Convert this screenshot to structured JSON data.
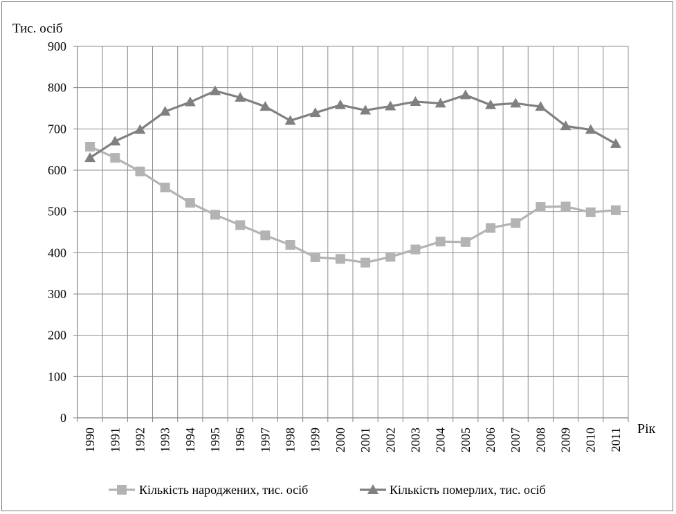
{
  "chart_data": {
    "type": "line",
    "title": "",
    "ylabel": "Тис. осіб",
    "xlabel": "Рік",
    "ylim": [
      0,
      900
    ],
    "yticks": [
      0,
      100,
      200,
      300,
      400,
      500,
      600,
      700,
      800,
      900
    ],
    "grid": true,
    "legend_position": "bottom",
    "categories": [
      "1990",
      "1991",
      "1992",
      "1993",
      "1994",
      "1995",
      "1996",
      "1997",
      "1998",
      "1999",
      "2000",
      "2001",
      "2002",
      "2003",
      "2004",
      "2005",
      "2006",
      "2007",
      "2008",
      "2009",
      "2010",
      "2011"
    ],
    "series": [
      {
        "name": "Кількість народжених, тис. осіб",
        "marker": "square",
        "color": "#b3b3b3",
        "values": [
          657,
          630,
          597,
          558,
          521,
          492,
          467,
          442,
          419,
          389,
          385,
          376,
          390,
          408,
          427,
          426,
          460,
          472,
          511,
          512,
          498,
          503
        ]
      },
      {
        "name": "Кількість померлих, тис. осіб",
        "marker": "triangle",
        "color": "#808080",
        "values": [
          630,
          670,
          698,
          742,
          765,
          792,
          776,
          754,
          720,
          739,
          758,
          745,
          755,
          766,
          762,
          782,
          758,
          762,
          754,
          707,
          698,
          664
        ]
      }
    ]
  }
}
